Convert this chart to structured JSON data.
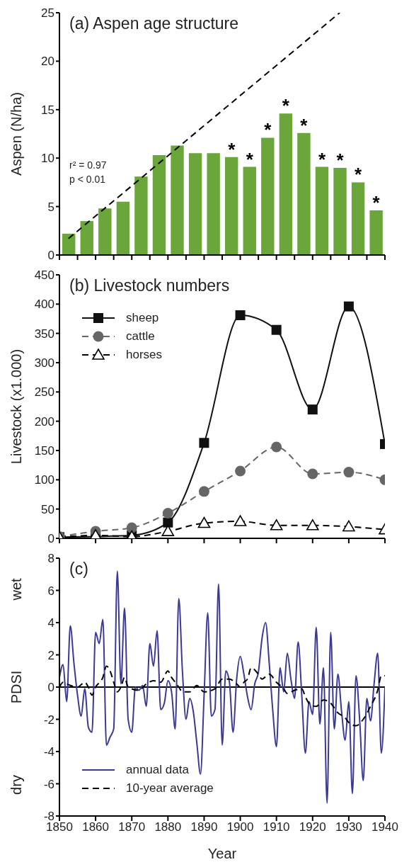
{
  "chart_data": [
    {
      "type": "bar",
      "title": "(a) Aspen age structure",
      "ylabel": "Aspen (N/ha)",
      "annotations": [
        "r² = 0.97",
        "p < 0.01"
      ],
      "xlim": [
        1850,
        1940
      ],
      "xticks": [
        {
          "value": 1850,
          "label": null
        },
        {
          "value": 1855,
          "label": null
        },
        {
          "value": 1860,
          "label": null
        },
        {
          "value": 1865,
          "label": null
        },
        {
          "value": 1870,
          "label": null
        },
        {
          "value": 1875,
          "label": null
        },
        {
          "value": 1880,
          "label": null
        },
        {
          "value": 1885,
          "label": null
        },
        {
          "value": 1890,
          "label": null
        },
        {
          "value": 1895,
          "label": null
        },
        {
          "value": 1900,
          "label": null
        },
        {
          "value": 1905,
          "label": null
        },
        {
          "value": 1910,
          "label": null
        },
        {
          "value": 1915,
          "label": null
        },
        {
          "value": 1920,
          "label": null
        },
        {
          "value": 1925,
          "label": null
        },
        {
          "value": 1930,
          "label": null
        },
        {
          "value": 1935,
          "label": null
        },
        {
          "value": 1940,
          "label": null
        }
      ],
      "ylim": [
        0,
        25
      ],
      "yticks": [
        0,
        5,
        10,
        15,
        20,
        25
      ],
      "tick_labels": "y",
      "grid": false,
      "legend": false,
      "series": [
        {
          "color": "#6aa63a",
          "x": [
            1852.5,
            1857.5,
            1862.5,
            1867.5,
            1872.5,
            1877.5,
            1882.5,
            1887.5,
            1892.5,
            1897.5,
            1902.5,
            1907.5,
            1912.5,
            1917.5,
            1922.5,
            1927.5,
            1932.5,
            1937.5
          ],
          "values": [
            2.2,
            3.5,
            4.8,
            5.5,
            8.1,
            10.3,
            11.3,
            10.5,
            10.5,
            10.1,
            9.1,
            12.1,
            14.6,
            12.6,
            9.1,
            9.0,
            7.5,
            4.6
          ],
          "value_labels": [
            null,
            null,
            null,
            null,
            null,
            null,
            null,
            null,
            null,
            "*",
            "*",
            "*",
            "*",
            "*",
            "*",
            "*",
            "*",
            "*"
          ]
        },
        {
          "type": "line",
          "color": "#000000",
          "line_style": "dashed",
          "x": [
            1852.5,
            1927.5
          ],
          "values": [
            1.7,
            25
          ]
        }
      ]
    },
    {
      "type": "line",
      "title": "(b) Livestock numbers",
      "ylabel": "Livestock (x1.000)",
      "xlim": [
        1850,
        1940
      ],
      "xticks": [
        {
          "value": 1850,
          "label": null
        },
        {
          "value": 1860,
          "label": null
        },
        {
          "value": 1870,
          "label": null
        },
        {
          "value": 1880,
          "label": null
        },
        {
          "value": 1890,
          "label": null
        },
        {
          "value": 1900,
          "label": null
        },
        {
          "value": 1910,
          "label": null
        },
        {
          "value": 1920,
          "label": null
        },
        {
          "value": 1930,
          "label": null
        },
        {
          "value": 1940,
          "label": null
        }
      ],
      "ylim": [
        0,
        450
      ],
      "yticks": [
        0,
        50,
        100,
        150,
        200,
        250,
        300,
        350,
        400,
        450
      ],
      "tick_labels": "y",
      "grid": false,
      "legend": "top left",
      "x": [
        1850,
        1860,
        1870,
        1880,
        1890,
        1900,
        1910,
        1920,
        1930,
        1940
      ],
      "series": [
        {
          "name": "sheep",
          "color": "#111111",
          "marker": "square",
          "line_style": "solid",
          "values": [
            2,
            3,
            5,
            27,
            163,
            381,
            356,
            220,
            396,
            161
          ]
        },
        {
          "name": "cattle",
          "color": "#666666",
          "marker": "circle",
          "line_style": "dashed",
          "values": [
            3,
            12,
            18,
            43,
            80,
            115,
            156,
            110,
            113,
            100
          ]
        },
        {
          "name": "horses",
          "color": "#000000",
          "marker": "triangle",
          "line_style": "dashed",
          "values": [
            2,
            5,
            3,
            12,
            26,
            29,
            22,
            22,
            20,
            15
          ]
        }
      ]
    },
    {
      "type": "line",
      "title": "(c)",
      "xlabel": "Year",
      "ylabel": "PDSI",
      "annotations": [
        "wet",
        "dry"
      ],
      "xlim": [
        1850,
        1940
      ],
      "xticks": [
        1850,
        1860,
        1870,
        1880,
        1890,
        1900,
        1910,
        1920,
        1930,
        1940
      ],
      "ylim": [
        -8,
        8
      ],
      "yticks": [
        -8,
        -6,
        -4,
        -2,
        0,
        2,
        4,
        6,
        8
      ],
      "grid": false,
      "legend": "bottom left",
      "marker": "none",
      "ref_lines": [
        {
          "axis": "y",
          "value": 0,
          "color": "#000000"
        }
      ],
      "series": [
        {
          "name": "annual data",
          "color": "#3a3a96",
          "line_style": "solid",
          "x": [
            1850,
            1851,
            1852,
            1853,
            1854,
            1855,
            1856,
            1857,
            1858,
            1859,
            1860,
            1861,
            1862,
            1863,
            1864,
            1865,
            1866,
            1867,
            1868,
            1869,
            1870,
            1871,
            1872,
            1873,
            1874,
            1875,
            1876,
            1877,
            1878,
            1879,
            1880,
            1881,
            1882,
            1883,
            1884,
            1885,
            1886,
            1887,
            1888,
            1889,
            1890,
            1891,
            1892,
            1893,
            1894,
            1895,
            1896,
            1897,
            1898,
            1899,
            1900,
            1901,
            1902,
            1903,
            1904,
            1905,
            1906,
            1907,
            1908,
            1909,
            1910,
            1911,
            1912,
            1913,
            1914,
            1915,
            1916,
            1917,
            1918,
            1919,
            1920,
            1921,
            1922,
            1923,
            1924,
            1925,
            1926,
            1927,
            1928,
            1929,
            1930,
            1931,
            1932,
            1933,
            1934,
            1935,
            1936,
            1937,
            1938,
            1939,
            1940
          ],
          "values": [
            0.6,
            1.4,
            -0.9,
            3.8,
            1.5,
            -0.5,
            -1.8,
            -0.1,
            -2.5,
            -2.8,
            3.4,
            2.7,
            4.2,
            -3.6,
            -3.1,
            -2.6,
            7.2,
            0.2,
            4.9,
            -2.0,
            -2.8,
            0.0,
            -0.2,
            0.1,
            -1.2,
            2.7,
            1.3,
            3.5,
            -1.4,
            -1.0,
            0.4,
            -0.3,
            -2.6,
            5.5,
            1.0,
            -2.0,
            -0.7,
            -1.5,
            -3.5,
            -5.4,
            -0.5,
            4.6,
            -1.8,
            -1.4,
            6.4,
            -3.6,
            1.0,
            0.3,
            -2.8,
            0.5,
            1.9,
            0.8,
            -0.6,
            -1.4,
            0.2,
            0.9,
            3.0,
            4.0,
            1.5,
            -1.5,
            -3.7,
            1.2,
            -0.3,
            2.1,
            0.5,
            -0.7,
            2.8,
            -0.5,
            -4.1,
            -0.9,
            -1.7,
            3.7,
            -2.3,
            1.2,
            -7.2,
            3.4,
            -2.6,
            0.8,
            -1.5,
            -3.3,
            -0.9,
            -6.6,
            0.7,
            -2.0,
            -5.8,
            -0.7,
            -2.1,
            0.2,
            2.1,
            -4.1,
            0.0
          ]
        },
        {
          "name": "10-year average",
          "color": "#000000",
          "line_style": "dashed",
          "x": [
            1850,
            1851,
            1852,
            1855,
            1857,
            1858,
            1859,
            1860,
            1862,
            1863,
            1864,
            1865,
            1866,
            1867,
            1868,
            1869,
            1872,
            1874,
            1876,
            1878,
            1880,
            1881,
            1882,
            1883,
            1884,
            1886,
            1888,
            1890,
            1893,
            1895,
            1897,
            1899,
            1900,
            1901,
            1902,
            1903,
            1905,
            1906,
            1908,
            1910,
            1912,
            1913,
            1915,
            1917,
            1918,
            1919,
            1921,
            1923,
            1925,
            1927,
            1929,
            1930,
            1932,
            1934,
            1936,
            1938,
            1939,
            1940
          ],
          "values": [
            0,
            0.3,
            0.2,
            0,
            0.3,
            0,
            -0.5,
            0,
            0.6,
            1.3,
            1.0,
            0.3,
            -0.3,
            0,
            0.6,
            0,
            -0.2,
            0.2,
            0.4,
            0.3,
            1.0,
            0.6,
            0.3,
            0,
            -0.3,
            -0.3,
            0.1,
            -0.3,
            -0.1,
            0.5,
            0.5,
            0.2,
            0,
            0.3,
            0.5,
            1.2,
            0.8,
            0.5,
            0.8,
            0.3,
            -0.1,
            -0.4,
            -0.2,
            -0.1,
            -0.6,
            -1.0,
            -1.2,
            -0.8,
            -1.0,
            -1.6,
            -1.9,
            -2.2,
            -2.4,
            -2.0,
            -1.2,
            -0.2,
            0.7,
            0.7
          ]
        }
      ]
    }
  ]
}
